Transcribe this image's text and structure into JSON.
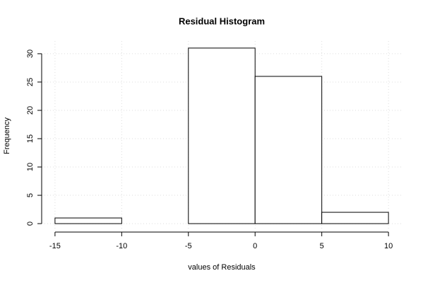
{
  "chart_data": {
    "type": "histogram",
    "title": "Residual Histogram",
    "x_label": "values of Residuals",
    "y_label": "Frequency",
    "bins": [
      -15,
      -10,
      -5,
      0,
      5,
      10
    ],
    "values": [
      1,
      0,
      31,
      26,
      2
    ],
    "color": "#ffffff",
    "xlim": [
      -16,
      11
    ],
    "ylim": [
      -1.24,
      32.24
    ],
    "xticks": [
      -15,
      -10,
      -5,
      0,
      5,
      10
    ],
    "yticks": [
      0,
      5,
      10,
      15,
      20,
      25,
      30
    ],
    "grid": true
  }
}
